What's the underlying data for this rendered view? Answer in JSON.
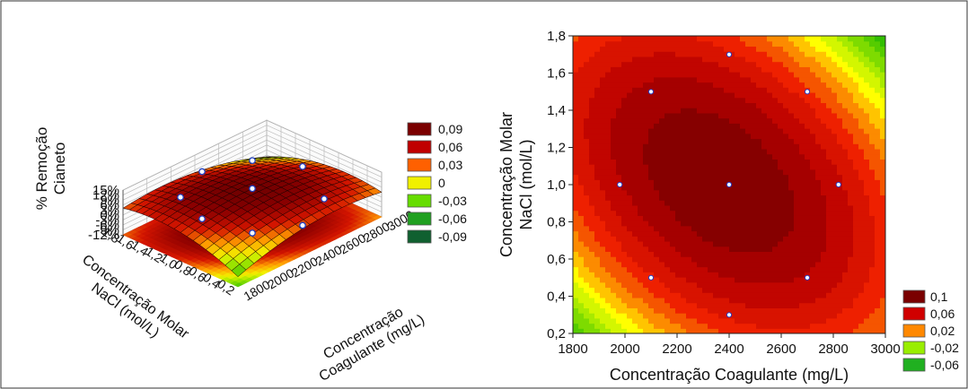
{
  "chart_data": [
    {
      "type": "surface",
      "zlabel_line1": "% Remoção",
      "zlabel_line2": "Cianeto",
      "xlabel_line1": "Concentração",
      "xlabel_line2": "Coagulante (mg/L)",
      "ylabel_line1": "Concentração Molar",
      "ylabel_line2": "NaCl (mol/L)",
      "z_ticks": [
        "15%",
        "12%",
        "9%",
        "6%",
        "3%",
        "0%",
        "-3%",
        "-6%",
        "-9%",
        "-12%"
      ],
      "x_ticks": [
        "1800",
        "2000",
        "2200",
        "2400",
        "2600",
        "2800",
        "3000"
      ],
      "y_ticks": [
        "0,2",
        "0,4",
        "0,6",
        "0,8",
        "1,0",
        "1,2",
        "1,4",
        "1,6",
        "1,8"
      ],
      "xlim": [
        1800,
        3000
      ],
      "ylim": [
        0.2,
        1.8
      ],
      "zlim": [
        -0.12,
        0.15
      ],
      "legend": {
        "placement": "right",
        "entries": [
          {
            "label": "0,09",
            "color": "#7a0000"
          },
          {
            "label": "0,06",
            "color": "#c00000"
          },
          {
            "label": "0,03",
            "color": "#ff6000"
          },
          {
            "label": "0",
            "color": "#f0f000"
          },
          {
            "label": "-0,03",
            "color": "#66dd00"
          },
          {
            "label": "-0,06",
            "color": "#20a020"
          },
          {
            "label": "-0,09",
            "color": "#106030"
          }
        ]
      },
      "points": [
        {
          "x": 2400,
          "y": 1.0,
          "z": 0.105
        },
        {
          "x": 2100,
          "y": 1.5,
          "z": 0.06
        },
        {
          "x": 2700,
          "y": 1.5,
          "z": 0.07
        },
        {
          "x": 2100,
          "y": 0.5,
          "z": 0.04
        },
        {
          "x": 2700,
          "y": 0.5,
          "z": 0.035
        },
        {
          "x": 2400,
          "y": 1.7,
          "z": 0.07
        },
        {
          "x": 2400,
          "y": 0.3,
          "z": 0.02
        },
        {
          "x": 1980,
          "y": 1.0,
          "z": 0.07
        },
        {
          "x": 2820,
          "y": 1.0,
          "z": 0.09
        }
      ]
    },
    {
      "type": "contour",
      "xlabel": "Concentração Coagulante (mg/L)",
      "ylabel_line1": "Concentração Molar",
      "ylabel_line2": "NaCl (mol/L)",
      "x_ticks": [
        "1800",
        "2000",
        "2200",
        "2400",
        "2600",
        "2800",
        "3000"
      ],
      "y_ticks": [
        "0,2",
        "0,4",
        "0,6",
        "0,8",
        "1,0",
        "1,2",
        "1,4",
        "1,6",
        "1,8"
      ],
      "xlim": [
        1800,
        3000
      ],
      "ylim": [
        0.2,
        1.8
      ],
      "grid": false,
      "legend": {
        "placement": "bottom-right",
        "entries": [
          {
            "label": "0,1",
            "color": "#7a0000"
          },
          {
            "label": "0,06",
            "color": "#d00000"
          },
          {
            "label": "0,02",
            "color": "#ff8800"
          },
          {
            "label": "-0,02",
            "color": "#99ee00"
          },
          {
            "label": "-0,06",
            "color": "#20b020"
          }
        ]
      },
      "design_points": [
        {
          "x": 2100,
          "y": 1.5
        },
        {
          "x": 2400,
          "y": 1.7
        },
        {
          "x": 2700,
          "y": 1.5
        },
        {
          "x": 1980,
          "y": 1.0
        },
        {
          "x": 2400,
          "y": 1.0
        },
        {
          "x": 2820,
          "y": 1.0
        },
        {
          "x": 2100,
          "y": 0.5
        },
        {
          "x": 2700,
          "y": 0.5
        },
        {
          "x": 2400,
          "y": 0.3
        }
      ]
    }
  ]
}
